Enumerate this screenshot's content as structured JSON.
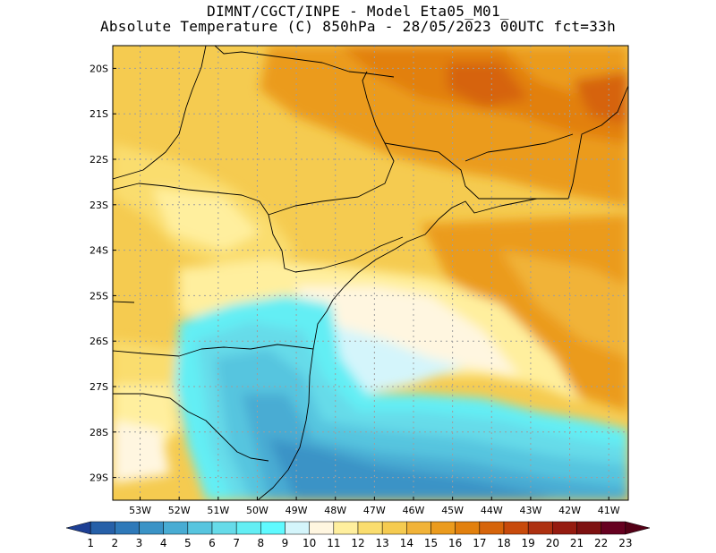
{
  "header": {
    "line1": "DIMNT/CGCT/INPE -  Model Eta05_M01_",
    "line2": "Absolute Temperature (C) 850hPa -  28/05/2023 00UTC fct=33h"
  },
  "map": {
    "lat_ticks": [
      "20S",
      "21S",
      "22S",
      "23S",
      "24S",
      "25S",
      "26S",
      "27S",
      "28S",
      "29S"
    ],
    "lon_ticks": [
      "53W",
      "52W",
      "51W",
      "50W",
      "49W",
      "48W",
      "47W",
      "46W",
      "45W",
      "44W",
      "43W",
      "42W",
      "41W"
    ],
    "lat_range": [
      -29.5,
      -19.5
    ],
    "lon_range": [
      -53.7,
      -40.5
    ]
  },
  "colorbar": {
    "labels": [
      "1",
      "2",
      "3",
      "4",
      "5",
      "6",
      "7",
      "8",
      "9",
      "10",
      "11",
      "12",
      "13",
      "14",
      "15",
      "16",
      "17",
      "18",
      "19",
      "20",
      "21",
      "22",
      "23"
    ],
    "colors": [
      "#1d3f94",
      "#2660a8",
      "#2e79b9",
      "#3a93c6",
      "#48acd3",
      "#57c5df",
      "#66dbe9",
      "#63eef4",
      "#5ffaff",
      "#d4f5fb",
      "#fff6e0",
      "#ffef9e",
      "#fadd6e",
      "#f5cb50",
      "#f1b338",
      "#eb9b1d",
      "#e2800d",
      "#d6640a",
      "#c84a0b",
      "#ad3010",
      "#951b10",
      "#7d1010",
      "#660020",
      "#540016"
    ]
  }
}
